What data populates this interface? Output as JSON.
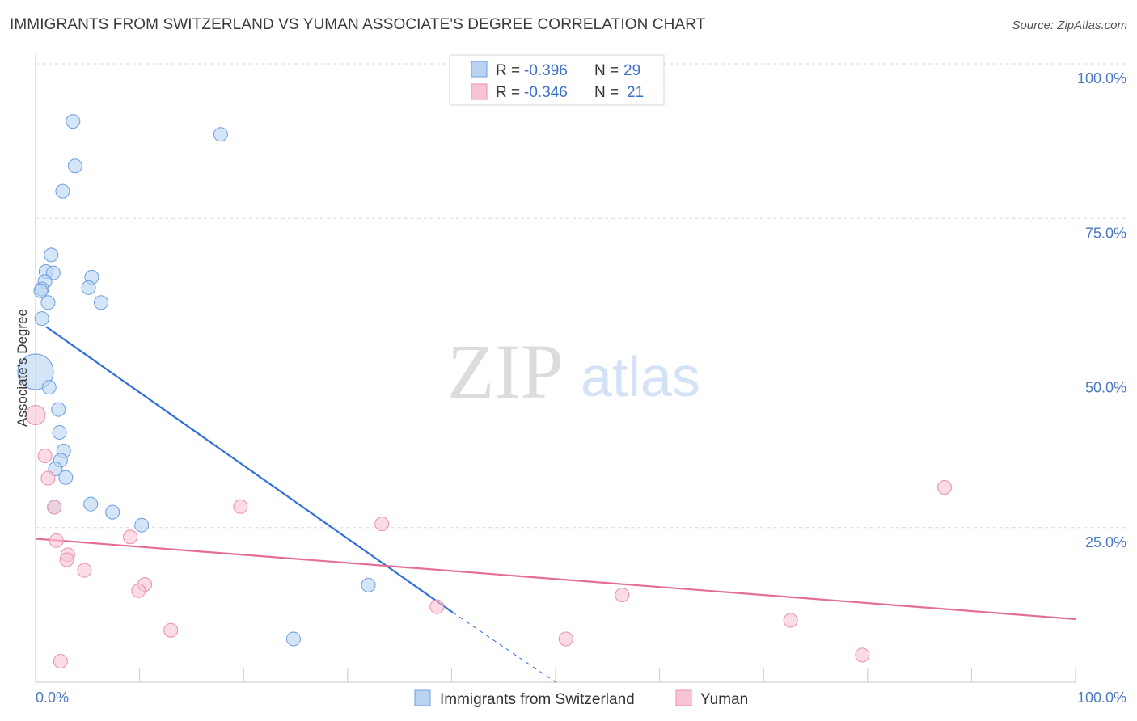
{
  "title": "IMMIGRANTS FROM SWITZERLAND VS YUMAN ASSOCIATE'S DEGREE CORRELATION CHART",
  "source": "Source: ZipAtlas.com",
  "watermark": {
    "zip": "ZIP",
    "atlas": "atlas"
  },
  "colors": {
    "blue_fill": "#b9d3f3",
    "blue_stroke": "#6d9de0",
    "blue_line": "#2f6fd6",
    "pink_fill": "#f8c4d4",
    "pink_stroke": "#e890ab",
    "pink_line": "#e46e97",
    "axis_text": "#4a78c4",
    "grid": "#d8d8d8"
  },
  "legend": {
    "rows": [
      {
        "r_label": "R =",
        "r_value": "-0.396",
        "n_label": "N =",
        "n_value": "29"
      },
      {
        "r_label": "R =",
        "r_value": "-0.346",
        "n_label": "N =",
        "n_value": "21"
      }
    ]
  },
  "bottom_legend": [
    "Immigrants from Switzerland",
    "Yuman"
  ],
  "chart_data": {
    "type": "scatter",
    "title": "IMMIGRANTS FROM SWITZERLAND VS YUMAN ASSOCIATE'S DEGREE CORRELATION CHART",
    "xlabel": "",
    "ylabel": "Associate's Degree",
    "xlim": [
      0,
      100
    ],
    "ylim": [
      0,
      100
    ],
    "x_tick_labels": [
      "0.0%",
      "100.0%"
    ],
    "y_tick_labels": [
      "100.0%",
      "75.0%",
      "50.0%",
      "25.0%"
    ],
    "y_ticks": [
      100,
      75,
      50,
      25
    ],
    "grid": true,
    "legend_position": "top-center",
    "series": [
      {
        "name": "Immigrants from Switzerland",
        "color": "#6d9de0",
        "points": [
          [
            3.6,
            90.7
          ],
          [
            3.8,
            83.5
          ],
          [
            2.6,
            79.4
          ],
          [
            1.5,
            69.1
          ],
          [
            1.0,
            66.4
          ],
          [
            1.7,
            66.2
          ],
          [
            5.4,
            65.5
          ],
          [
            0.9,
            64.8
          ],
          [
            0.6,
            63.6
          ],
          [
            0.5,
            63.3
          ],
          [
            5.1,
            63.8
          ],
          [
            1.2,
            61.4
          ],
          [
            6.3,
            61.4
          ],
          [
            0.6,
            58.8
          ],
          [
            0.0,
            50.2
          ],
          [
            1.3,
            47.7
          ],
          [
            2.2,
            44.1
          ],
          [
            2.3,
            40.4
          ],
          [
            2.7,
            37.4
          ],
          [
            2.4,
            35.9
          ],
          [
            1.9,
            34.5
          ],
          [
            2.9,
            33.1
          ],
          [
            1.8,
            28.3
          ],
          [
            5.3,
            28.8
          ],
          [
            7.4,
            27.5
          ],
          [
            10.2,
            25.4
          ],
          [
            17.8,
            88.6
          ],
          [
            32.0,
            15.7
          ],
          [
            24.8,
            7.0
          ]
        ],
        "trend_solid": [
          [
            1.0,
            57.5
          ],
          [
            40.1,
            11.3
          ]
        ],
        "trend_dashed": [
          [
            40.1,
            11.3
          ],
          [
            50.0,
            -0.5
          ]
        ]
      },
      {
        "name": "Yuman",
        "color": "#e890ab",
        "points": [
          [
            0.0,
            43.2
          ],
          [
            0.9,
            36.6
          ],
          [
            1.2,
            33.0
          ],
          [
            1.8,
            28.3
          ],
          [
            2.0,
            22.9
          ],
          [
            3.1,
            20.6
          ],
          [
            3.0,
            19.8
          ],
          [
            4.7,
            18.1
          ],
          [
            9.1,
            23.5
          ],
          [
            10.5,
            15.8
          ],
          [
            9.9,
            14.8
          ],
          [
            13.0,
            8.4
          ],
          [
            2.4,
            3.4
          ],
          [
            19.7,
            28.4
          ],
          [
            33.3,
            25.6
          ],
          [
            38.6,
            12.2
          ],
          [
            51.0,
            7.0
          ],
          [
            56.4,
            14.1
          ],
          [
            72.6,
            10.0
          ],
          [
            79.5,
            4.4
          ],
          [
            87.4,
            31.5
          ]
        ],
        "trend_solid": [
          [
            0.0,
            23.2
          ],
          [
            100.0,
            10.2
          ]
        ]
      }
    ]
  }
}
